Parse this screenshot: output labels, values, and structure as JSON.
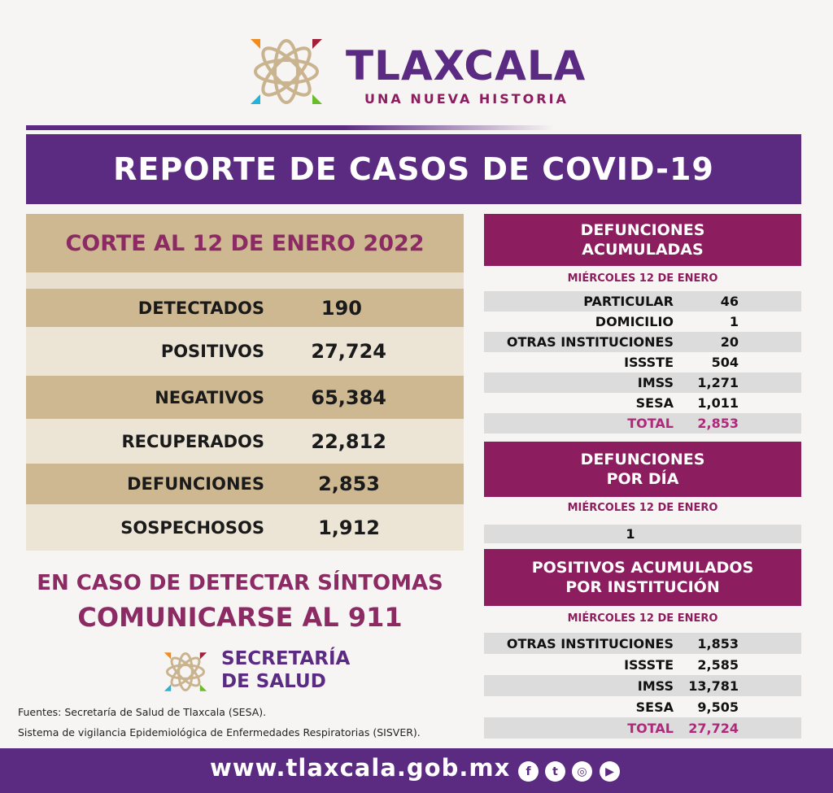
{
  "header": {
    "title": "TLAXCALA",
    "subtitle": "UNA NUEVA HISTORIA"
  },
  "banner": "REPORTE DE CASOS DE COVID-19",
  "summary": {
    "title": "CORTE AL 12 DE ENERO 2022",
    "rows": [
      {
        "label": "DETECTADOS",
        "value": "190"
      },
      {
        "label": "POSITIVOS",
        "value": "27,724"
      },
      {
        "label": "NEGATIVOS",
        "value": "65,384"
      },
      {
        "label": "RECUPERADOS",
        "value": "22,812"
      },
      {
        "label": "DEFUNCIONES",
        "value": "2,853"
      },
      {
        "label": "SOSPECHOSOS",
        "value": "1,912"
      }
    ]
  },
  "defunciones_acumuladas": {
    "title_1": "DEFUNCIONES",
    "title_2": "ACUMULADAS",
    "date": "MIÉRCOLES 12 DE ENERO",
    "rows": [
      {
        "label": "PARTICULAR",
        "value": "46"
      },
      {
        "label": "DOMICILIO",
        "value": "1"
      },
      {
        "label": "OTRAS INSTITUCIONES",
        "value": "20"
      },
      {
        "label": "ISSSTE",
        "value": "504"
      },
      {
        "label": "IMSS",
        "value": "1,271"
      },
      {
        "label": "SESA",
        "value": "1,011"
      },
      {
        "label": "TOTAL",
        "value": "2,853"
      }
    ]
  },
  "defunciones_dia": {
    "title_1": "DEFUNCIONES",
    "title_2": "POR DÍA",
    "date": "MIÉRCOLES 12 DE ENERO",
    "value": "1"
  },
  "positivos_institucion": {
    "title_1": "POSITIVOS ACUMULADOS",
    "title_2": "POR INSTITUCIÓN",
    "date": "MIÉRCOLES 12 DE ENERO",
    "rows": [
      {
        "label": "OTRAS INSTITUCIONES",
        "value": "1,853"
      },
      {
        "label": "ISSSTE",
        "value": "2,585"
      },
      {
        "label": "IMSS",
        "value": "13,781"
      },
      {
        "label": "SESA",
        "value": "9,505"
      },
      {
        "label": "TOTAL",
        "value": "27,724"
      }
    ]
  },
  "callout": {
    "line1": "EN CASO DE DETECTAR SÍNTOMAS",
    "line2": "COMUNICARSE AL 911"
  },
  "secretaria": {
    "line1": "SECRETARÍA",
    "line2": "DE SALUD"
  },
  "sources": [
    "Fuentes:  Secretaría de Salud de Tlaxcala (SESA).",
    "Sistema de vigilancia Epidemiológica de Enfermedades Respiratorias (SISVER)."
  ],
  "footer": {
    "url": "www.tlaxcala.gob.mx",
    "social": [
      "facebook-icon",
      "twitter-icon",
      "instagram-icon",
      "youtube-icon"
    ]
  },
  "colors": {
    "purple": "#5a2b81",
    "magenta": "#8c1d5e",
    "tan": "#cdb892"
  }
}
